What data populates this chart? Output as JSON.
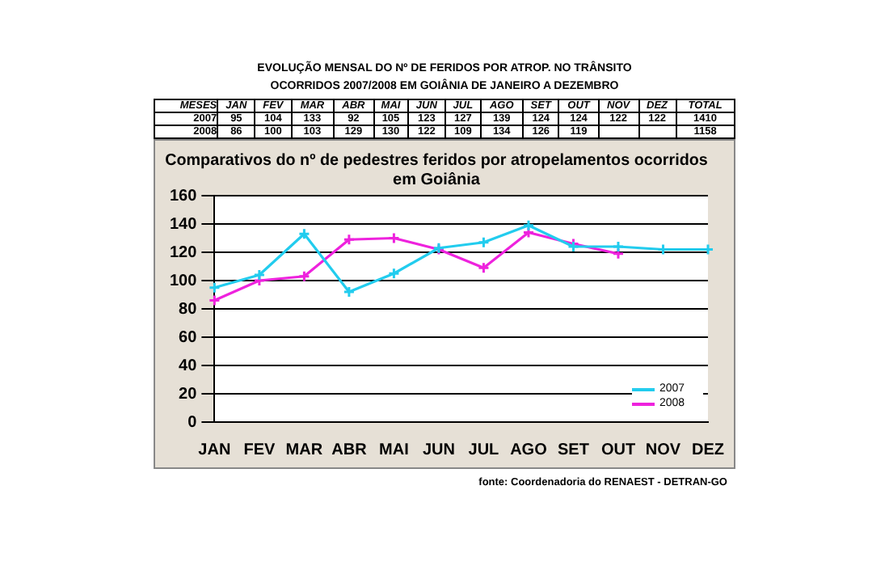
{
  "chart_data": [
    {
      "type": "heatmap",
      "title": "EVOLUÇÃO MENSAL DO Nº DE FERIDOS POR ATROP. NO TRÂNSITO",
      "subtitle": "OCORRIDOS  2007/2008 EM GOIÂNIA DE JANEIRO A DEZEMBRO",
      "categories": [
        "JAN",
        "FEV",
        "MAR",
        "ABR",
        "MAI",
        "JUN",
        "JUL",
        "AGO",
        "SET",
        "OUT",
        "NOV",
        "DEZ"
      ],
      "y_categories": [
        "2007",
        "2008"
      ],
      "cells": [
        [
          95,
          104,
          133,
          92,
          105,
          123,
          127,
          139,
          124,
          124,
          122,
          122
        ],
        [
          86,
          100,
          103,
          129,
          130,
          122,
          109,
          134,
          126,
          119,
          null,
          null
        ]
      ],
      "totals": [
        "1410",
        "1158"
      ],
      "data_labels": true,
      "annotations": [
        "MESES",
        "TOTAL"
      ]
    },
    {
      "type": "line",
      "title": "Comparativos do nº de pedestres feridos por atropelamentos ocorridos em Goiânia",
      "categories": [
        "JAN",
        "FEV",
        "MAR",
        "ABR",
        "MAI",
        "JUN",
        "JUL",
        "AGO",
        "SET",
        "OUT",
        "NOV",
        "DEZ"
      ],
      "series": [
        {
          "name": "2007",
          "color": "#22ccee",
          "values": [
            95,
            104,
            133,
            92,
            105,
            123,
            127,
            139,
            124,
            124,
            122,
            122
          ]
        },
        {
          "name": "2008",
          "color": "#ee22dd",
          "values": [
            86,
            100,
            103,
            129,
            130,
            122,
            109,
            134,
            126,
            119,
            null,
            null
          ]
        }
      ],
      "ylim": [
        0,
        160
      ],
      "yticks": [
        0,
        20,
        40,
        60,
        80,
        100,
        120,
        140,
        160
      ],
      "grid": "y",
      "legend": "bottom right",
      "marker": "cross",
      "line_style": "solid",
      "annotations": [
        "fonte: Coordenadoria do RENAEST - DETRAN-GO"
      ]
    }
  ]
}
